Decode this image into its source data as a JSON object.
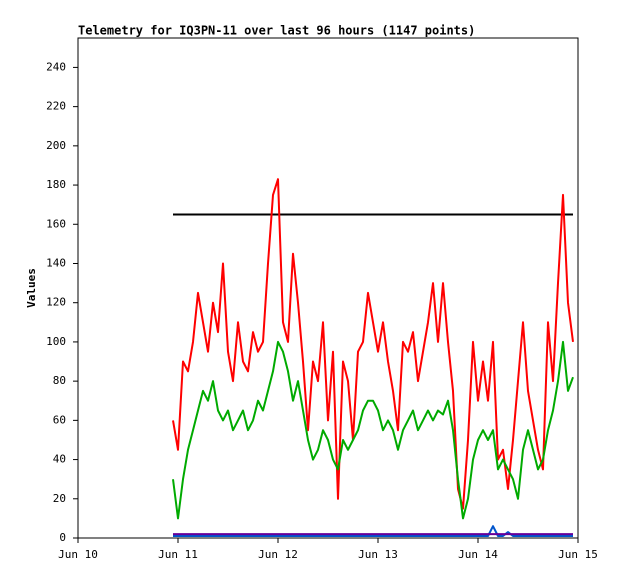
{
  "chart_data": {
    "type": "line",
    "title": "Telemetry for IQ3PN-11 over last 96 hours (1147 points)",
    "y_label": "Values",
    "xlim": [
      10,
      15
    ],
    "xticks": [
      {
        "value": 10,
        "label": "Jun 10"
      },
      {
        "value": 11,
        "label": "Jun 11"
      },
      {
        "value": 12,
        "label": "Jun 12"
      },
      {
        "value": 13,
        "label": "Jun 13"
      },
      {
        "value": 14,
        "label": "Jun 14"
      },
      {
        "value": 15,
        "label": "Jun 15"
      }
    ],
    "ylim": [
      0,
      255
    ],
    "yticks": [
      0,
      20,
      40,
      60,
      80,
      100,
      120,
      140,
      160,
      180,
      200,
      220,
      240
    ],
    "x": [
      10.95,
      11.0,
      11.05,
      11.1,
      11.15,
      11.2,
      11.25,
      11.3,
      11.35,
      11.4,
      11.45,
      11.5,
      11.55,
      11.6,
      11.65,
      11.7,
      11.75,
      11.8,
      11.85,
      11.9,
      11.95,
      12.0,
      12.05,
      12.1,
      12.15,
      12.2,
      12.25,
      12.3,
      12.35,
      12.4,
      12.45,
      12.5,
      12.55,
      12.6,
      12.65,
      12.7,
      12.75,
      12.8,
      12.85,
      12.9,
      12.95,
      13.0,
      13.05,
      13.1,
      13.15,
      13.2,
      13.25,
      13.3,
      13.35,
      13.4,
      13.45,
      13.5,
      13.55,
      13.6,
      13.65,
      13.7,
      13.75,
      13.8,
      13.85,
      13.9,
      13.95,
      14.0,
      14.05,
      14.1,
      14.15,
      14.2,
      14.25,
      14.3,
      14.35,
      14.4,
      14.45,
      14.5,
      14.55,
      14.6,
      14.65,
      14.7,
      14.75,
      14.8,
      14.85,
      14.9,
      14.95
    ],
    "series": [
      {
        "color": "#000000",
        "values": [
          165,
          165,
          165,
          165,
          165,
          165,
          165,
          165,
          165,
          165,
          165,
          165,
          165,
          165,
          165,
          165,
          165,
          165,
          165,
          165,
          165,
          165,
          165,
          165,
          165,
          165,
          165,
          165,
          165,
          165,
          165,
          165,
          165,
          165,
          165,
          165,
          165,
          165,
          165,
          165,
          165,
          165,
          165,
          165,
          165,
          165,
          165,
          165,
          165,
          165,
          165,
          165,
          165,
          165,
          165,
          165,
          165,
          165,
          165,
          165,
          165,
          165,
          165,
          165,
          165,
          165,
          165,
          165,
          165,
          165,
          165,
          165,
          165,
          165,
          165,
          165,
          165,
          165,
          165,
          165,
          165
        ]
      },
      {
        "color": "#ff0000",
        "values": [
          60,
          45,
          90,
          85,
          100,
          125,
          110,
          95,
          120,
          105,
          140,
          95,
          80,
          110,
          90,
          85,
          105,
          95,
          100,
          140,
          175,
          183,
          110,
          100,
          145,
          120,
          90,
          55,
          90,
          80,
          110,
          60,
          95,
          20,
          90,
          80,
          50,
          95,
          100,
          125,
          110,
          95,
          110,
          90,
          75,
          55,
          100,
          95,
          105,
          80,
          95,
          110,
          130,
          100,
          130,
          100,
          75,
          25,
          15,
          50,
          100,
          70,
          90,
          70,
          100,
          40,
          45,
          25,
          50,
          80,
          110,
          75,
          60,
          45,
          35,
          110,
          80,
          130,
          175,
          120,
          100
        ]
      },
      {
        "color": "#00aa00",
        "values": [
          30,
          10,
          30,
          45,
          55,
          65,
          75,
          70,
          80,
          65,
          60,
          65,
          55,
          60,
          65,
          55,
          60,
          70,
          65,
          75,
          85,
          100,
          95,
          85,
          70,
          80,
          65,
          50,
          40,
          45,
          55,
          50,
          40,
          35,
          50,
          45,
          50,
          55,
          65,
          70,
          70,
          65,
          55,
          60,
          55,
          45,
          55,
          60,
          65,
          55,
          60,
          65,
          60,
          65,
          63,
          70,
          55,
          30,
          10,
          20,
          40,
          50,
          55,
          50,
          55,
          35,
          40,
          35,
          30,
          20,
          45,
          55,
          45,
          35,
          40,
          55,
          65,
          80,
          100,
          75,
          82
        ]
      },
      {
        "color": "#0055cc",
        "values": [
          1,
          1,
          1,
          1,
          1,
          1,
          1,
          1,
          1,
          1,
          1,
          1,
          1,
          1,
          1,
          1,
          1,
          1,
          1,
          1,
          1,
          1,
          1,
          1,
          1,
          1,
          1,
          1,
          1,
          1,
          1,
          1,
          1,
          1,
          1,
          1,
          1,
          1,
          1,
          1,
          1,
          1,
          1,
          1,
          1,
          1,
          1,
          1,
          1,
          1,
          1,
          1,
          1,
          1,
          1,
          1,
          1,
          1,
          1,
          1,
          1,
          1,
          1,
          1,
          6,
          1,
          1,
          3,
          1,
          1,
          1,
          1,
          1,
          1,
          1,
          1,
          1,
          1,
          1,
          1,
          1
        ]
      },
      {
        "color": "#660099",
        "values": [
          2,
          2,
          2,
          2,
          2,
          2,
          2,
          2,
          2,
          2,
          2,
          2,
          2,
          2,
          2,
          2,
          2,
          2,
          2,
          2,
          2,
          2,
          2,
          2,
          2,
          2,
          2,
          2,
          2,
          2,
          2,
          2,
          2,
          2,
          2,
          2,
          2,
          2,
          2,
          2,
          2,
          2,
          2,
          2,
          2,
          2,
          2,
          2,
          2,
          2,
          2,
          2,
          2,
          2,
          2,
          2,
          2,
          2,
          2,
          2,
          2,
          2,
          2,
          2,
          2,
          2,
          2,
          2,
          2,
          2,
          2,
          2,
          2,
          2,
          2,
          2,
          2,
          2,
          2,
          2,
          2
        ]
      }
    ]
  }
}
